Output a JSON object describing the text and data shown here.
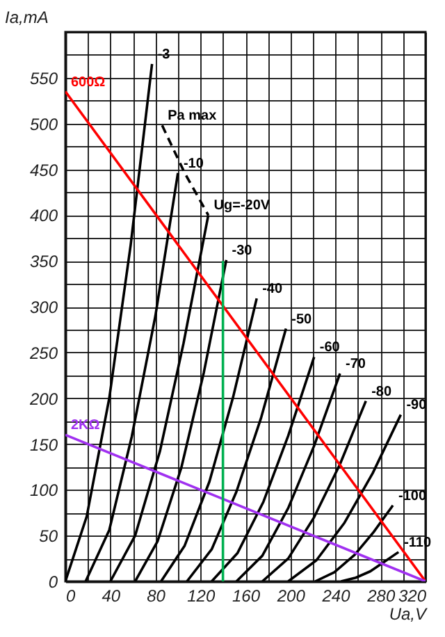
{
  "chart_data": {
    "type": "line",
    "xlabel": "Ua,V",
    "ylabel": "Ia,mA",
    "xlim": [
      0,
      320
    ],
    "ylim": [
      0,
      600
    ],
    "xticks": [
      0,
      {
        "value": 20,
        "label": null
      },
      40,
      {
        "value": 60,
        "label": null
      },
      80,
      {
        "value": 100,
        "label": null
      },
      120,
      {
        "value": 140,
        "label": null
      },
      160,
      {
        "value": 180,
        "label": null
      },
      200,
      {
        "value": 220,
        "label": null
      },
      240,
      {
        "value": 260,
        "label": null
      },
      280,
      {
        "value": 300,
        "label": null
      },
      320
    ],
    "yticks": [
      0,
      {
        "value": 25,
        "label": null
      },
      50,
      {
        "value": 75,
        "label": null
      },
      100,
      {
        "value": 125,
        "label": null
      },
      150,
      {
        "value": 175,
        "label": null
      },
      200,
      {
        "value": 225,
        "label": null
      },
      250,
      {
        "value": 275,
        "label": null
      },
      300,
      {
        "value": 325,
        "label": null
      },
      350,
      {
        "value": 375,
        "label": null
      },
      400,
      {
        "value": 425,
        "label": null
      },
      450,
      {
        "value": 475,
        "label": null
      },
      500,
      {
        "value": 525,
        "label": null
      },
      550,
      {
        "value": 575,
        "label": null
      },
      {
        "value": 600,
        "label": null
      }
    ],
    "grid": true,
    "series": [
      {
        "name": "-3",
        "color": "#000000",
        "x": [
          0,
          19,
          39,
          58,
          77
        ],
        "values": [
          0,
          71,
          200,
          367,
          565
        ]
      },
      {
        "name": "-10",
        "color": "#000000",
        "x": [
          18,
          39,
          59,
          80,
          100
        ],
        "values": [
          0,
          56,
          158,
          290,
          446
        ]
      },
      {
        "name": "Ug=-20V",
        "color": "#000000",
        "x": [
          40,
          62,
          84,
          105,
          127
        ],
        "values": [
          0,
          50,
          142,
          260,
          400
        ]
      },
      {
        "name": "-30",
        "color": "#000000",
        "x": [
          62,
          82,
          103,
          123,
          143
        ],
        "values": [
          0,
          44,
          124,
          228,
          351
        ]
      },
      {
        "name": "-40",
        "color": "#000000",
        "x": [
          85,
          106,
          128,
          149,
          170
        ],
        "values": [
          0,
          39,
          109,
          201,
          309
        ]
      },
      {
        "name": "-50",
        "color": "#000000",
        "x": [
          108,
          130,
          152,
          174,
          196
        ],
        "values": [
          0,
          35,
          98,
          179,
          276
        ]
      },
      {
        "name": "-60",
        "color": "#000000",
        "x": [
          130,
          153,
          176,
          198,
          221
        ],
        "values": [
          0,
          31,
          87,
          159,
          245
        ]
      },
      {
        "name": "-70",
        "color": "#000000",
        "x": [
          152,
          175,
          198,
          221,
          244
        ],
        "values": [
          0,
          28,
          80,
          148,
          227
        ]
      },
      {
        "name": "-80",
        "color": "#000000",
        "x": [
          175,
          198,
          221,
          244,
          267
        ],
        "values": [
          0,
          25,
          70,
          128,
          197
        ]
      },
      {
        "name": "-90",
        "color": "#000000",
        "x": [
          198,
          223,
          248,
          273,
          298
        ],
        "values": [
          0,
          23,
          64,
          118,
          182
        ]
      },
      {
        "name": "-100",
        "color": "#000000",
        "x": [
          222,
          239,
          257,
          274,
          291
        ],
        "values": [
          0,
          10,
          29,
          54,
          83
        ]
      },
      {
        "name": "-110",
        "color": "#000000",
        "x": [
          245,
          258,
          271,
          283,
          296
        ],
        "values": [
          0,
          4,
          11,
          21,
          32
        ]
      },
      {
        "name": "Pa max",
        "color": "#000000",
        "line_style": "dashed",
        "x": [
          86,
          106,
          127
        ],
        "values": [
          498,
          446,
          400
        ]
      },
      {
        "name": "600Ω",
        "color": "#ff0000",
        "x": [
          0,
          320
        ],
        "values": [
          535,
          0
        ]
      },
      {
        "name": "2KΩ",
        "color": "#a030f0",
        "x": [
          0,
          320
        ],
        "values": [
          160,
          0
        ]
      },
      {
        "color": "#00b050",
        "x": [
          140,
          140
        ],
        "values": [
          0,
          350
        ]
      }
    ]
  }
}
